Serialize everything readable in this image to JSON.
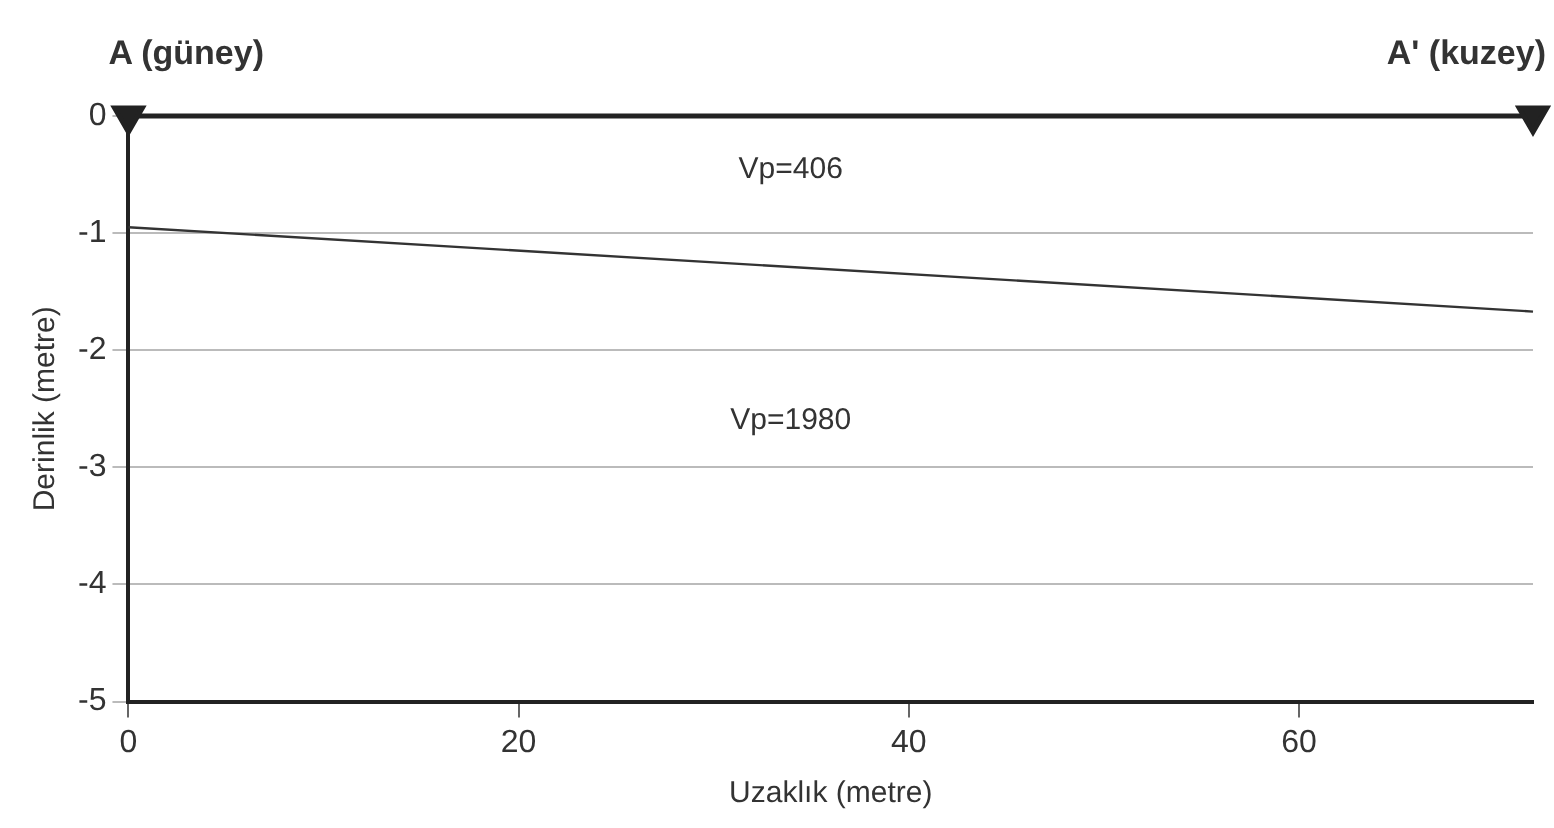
{
  "chart_data": {
    "type": "line",
    "xlabel": "Uzaklık (metre)",
    "ylabel": "Derinlik (metre)",
    "xlim": [
      0,
      72
    ],
    "xticks": [
      0,
      20,
      40,
      60
    ],
    "ylim": [
      -5,
      0
    ],
    "yticks": [
      0,
      -1,
      -2,
      -3,
      -4,
      -5
    ],
    "grid": "y",
    "line_style": "solid",
    "x": [
      0,
      72
    ],
    "series": [
      {
        "color": "#222222",
        "values": [
          0,
          0
        ],
        "marker": "triangle"
      },
      {
        "color": "#333333",
        "values": [
          -0.95,
          -1.67
        ],
        "marker": "none"
      }
    ],
    "annotations": [
      {
        "text": "A (güney)",
        "x": 0,
        "y": 0
      },
      {
        "text": "A' (kuzey)",
        "x": 72,
        "y": 0
      },
      "Vp=406",
      "Vp=1980"
    ]
  }
}
